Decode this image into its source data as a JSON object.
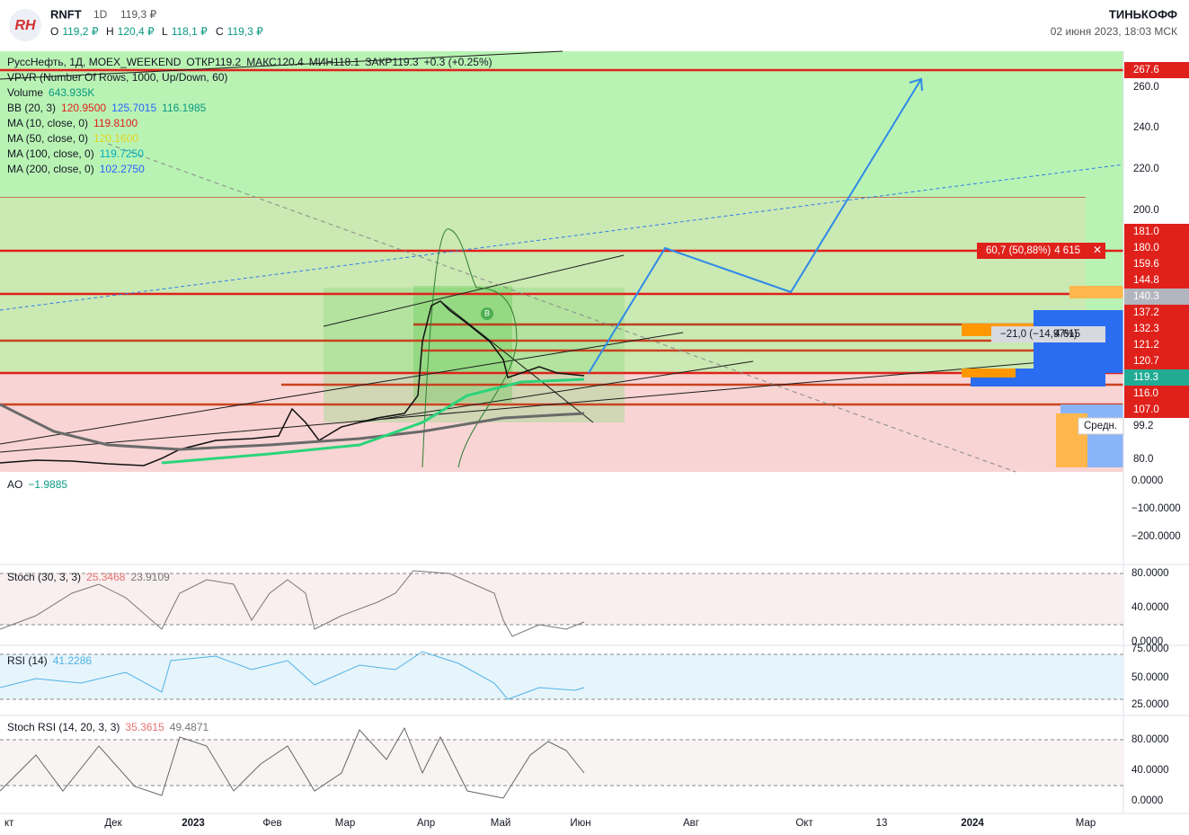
{
  "header": {
    "symbol": "RNFT",
    "interval": "1D",
    "price": "119,3 ₽",
    "ohlc": [
      {
        "key": "О",
        "value": "119,2 ₽"
      },
      {
        "key": "Н",
        "value": "120,4 ₽"
      },
      {
        "key": "L",
        "value": "118,1 ₽"
      },
      {
        "key": "C",
        "value": "119,3 ₽"
      }
    ],
    "brand": "ТИНЬКОФФ",
    "datetime": "02 июня 2023, 18:03 МСК"
  },
  "legend": [
    {
      "label": "РуссНефть, 1Д, MOEX_WEEKEND",
      "values": [
        "ОТКР119.2",
        "МАКС120.4",
        "МИН118.1",
        "ЗАКР119.3",
        "+0.3 (+0.25%)"
      ]
    },
    {
      "label": "VPVR (Number Of Rows, 1000, Up/Down, 60)",
      "values": []
    },
    {
      "label": "Volume",
      "values": [
        "643.935K"
      ]
    },
    {
      "label": "BB (20, 3)",
      "values": [
        "120.9500",
        "125.7015",
        "116.1985"
      ]
    },
    {
      "label": "MA (10, close, 0)",
      "values": [
        "119.8100"
      ]
    },
    {
      "label": "MA (50, close, 0)",
      "values": [
        "120.1600"
      ]
    },
    {
      "label": "MA (100, close, 0)",
      "values": [
        "119.7250"
      ]
    },
    {
      "label": "MA (200, close, 0)",
      "values": [
        "102.2750"
      ]
    }
  ],
  "price_axis": [
    {
      "label": "267.6"
    },
    {
      "label": "260.0"
    },
    {
      "label": "240.0"
    },
    {
      "label": "220.0"
    },
    {
      "label": "200.0"
    },
    {
      "label": "181.0"
    },
    {
      "label": "180.0"
    },
    {
      "label": "159.6"
    },
    {
      "label": "144.8"
    },
    {
      "label": "140.3"
    },
    {
      "label": "137.2"
    },
    {
      "label": "132.3"
    },
    {
      "label": "121.2"
    },
    {
      "label": "120.7"
    },
    {
      "label": "119.3"
    },
    {
      "label": "116.0"
    },
    {
      "label": "107.0"
    },
    {
      "label": "99.2",
      "tag": "Средн."
    },
    {
      "label": "80.0"
    }
  ],
  "panels": [
    {
      "title": "AO",
      "values": [
        "−1.9885"
      ],
      "axis": [
        "0.0000",
        "−100.0000",
        "−200.0000"
      ]
    },
    {
      "title": "Stoch (30, 3, 3)",
      "values": [
        "25.3468",
        "23.9109"
      ],
      "axis": [
        "80.0000",
        "40.0000",
        "0.0000"
      ]
    },
    {
      "title": "RSI (14)",
      "values": [
        "41.2286"
      ],
      "axis": [
        "75.0000",
        "50.0000",
        "25.0000"
      ]
    },
    {
      "title": "Stoch RSI (14, 20, 3, 3)",
      "values": [
        "35.3615",
        "49.4871"
      ],
      "axis": [
        "80.0000",
        "40.0000",
        "0.0000"
      ]
    }
  ],
  "time_axis": [
    "кт",
    "Дек",
    "2023",
    "Фев",
    "Мар",
    "Апр",
    "Май",
    "Июн",
    "Авг",
    "Окт",
    "13",
    "2024",
    "Мар"
  ],
  "positions": [
    {
      "change": "60,7 (50,88%)",
      "qty": "4 615"
    },
    {
      "change": "−21,0 (−14,97%)",
      "qty": "4 615"
    }
  ],
  "marker": "B"
}
